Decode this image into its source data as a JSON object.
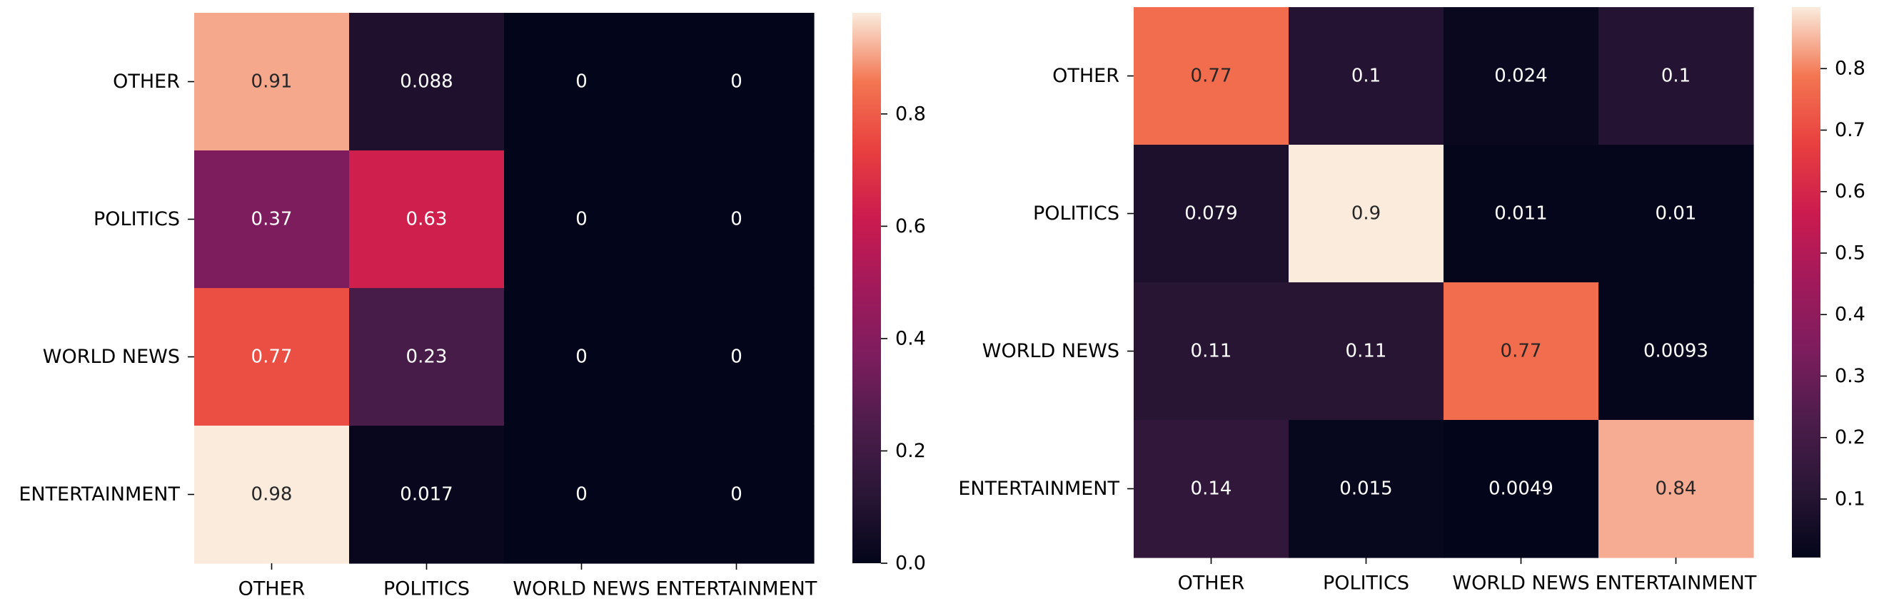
{
  "chart_data": [
    {
      "type": "heatmap",
      "rows": [
        "OTHER",
        "POLITICS",
        "WORLD NEWS",
        "ENTERTAINMENT"
      ],
      "columns": [
        "OTHER",
        "POLITICS",
        "WORLD NEWS",
        "ENTERTAINMENT"
      ],
      "values": [
        [
          0.91,
          0.088,
          0,
          0
        ],
        [
          0.37,
          0.63,
          0,
          0
        ],
        [
          0.77,
          0.23,
          0,
          0
        ],
        [
          0.98,
          0.017,
          0,
          0
        ]
      ],
      "cell_labels": [
        [
          "0.91",
          "0.088",
          "0",
          "0"
        ],
        [
          "0.37",
          "0.63",
          "0",
          "0"
        ],
        [
          "0.77",
          "0.23",
          "0",
          "0"
        ],
        [
          "0.98",
          "0.017",
          "0",
          "0"
        ]
      ],
      "colormap": "rocket",
      "vmin": 0.0,
      "vmax": 0.98,
      "colorbar_ticks": [
        "0.0",
        "0.2",
        "0.4",
        "0.6",
        "0.8"
      ],
      "colorbar_tick_values": [
        0.0,
        0.2,
        0.4,
        0.6,
        0.8
      ],
      "title": "",
      "xlabel": "",
      "ylabel": ""
    },
    {
      "type": "heatmap",
      "rows": [
        "OTHER",
        "POLITICS",
        "WORLD NEWS",
        "ENTERTAINMENT"
      ],
      "columns": [
        "OTHER",
        "POLITICS",
        "WORLD NEWS",
        "ENTERTAINMENT"
      ],
      "values": [
        [
          0.77,
          0.1,
          0.024,
          0.1
        ],
        [
          0.079,
          0.9,
          0.011,
          0.01
        ],
        [
          0.11,
          0.11,
          0.77,
          0.0093
        ],
        [
          0.14,
          0.015,
          0.0049,
          0.84
        ]
      ],
      "cell_labels": [
        [
          "0.77",
          "0.1",
          "0.024",
          "0.1"
        ],
        [
          "0.079",
          "0.9",
          "0.011",
          "0.01"
        ],
        [
          "0.11",
          "0.11",
          "0.77",
          "0.0093"
        ],
        [
          "0.14",
          "0.015",
          "0.0049",
          "0.84"
        ]
      ],
      "colormap": "rocket",
      "vmin": 0.0049,
      "vmax": 0.9,
      "colorbar_ticks": [
        "0.1",
        "0.2",
        "0.3",
        "0.4",
        "0.5",
        "0.6",
        "0.7",
        "0.8"
      ],
      "colorbar_tick_values": [
        0.1,
        0.2,
        0.3,
        0.4,
        0.5,
        0.6,
        0.7,
        0.8
      ],
      "title": "",
      "xlabel": "",
      "ylabel": ""
    }
  ]
}
